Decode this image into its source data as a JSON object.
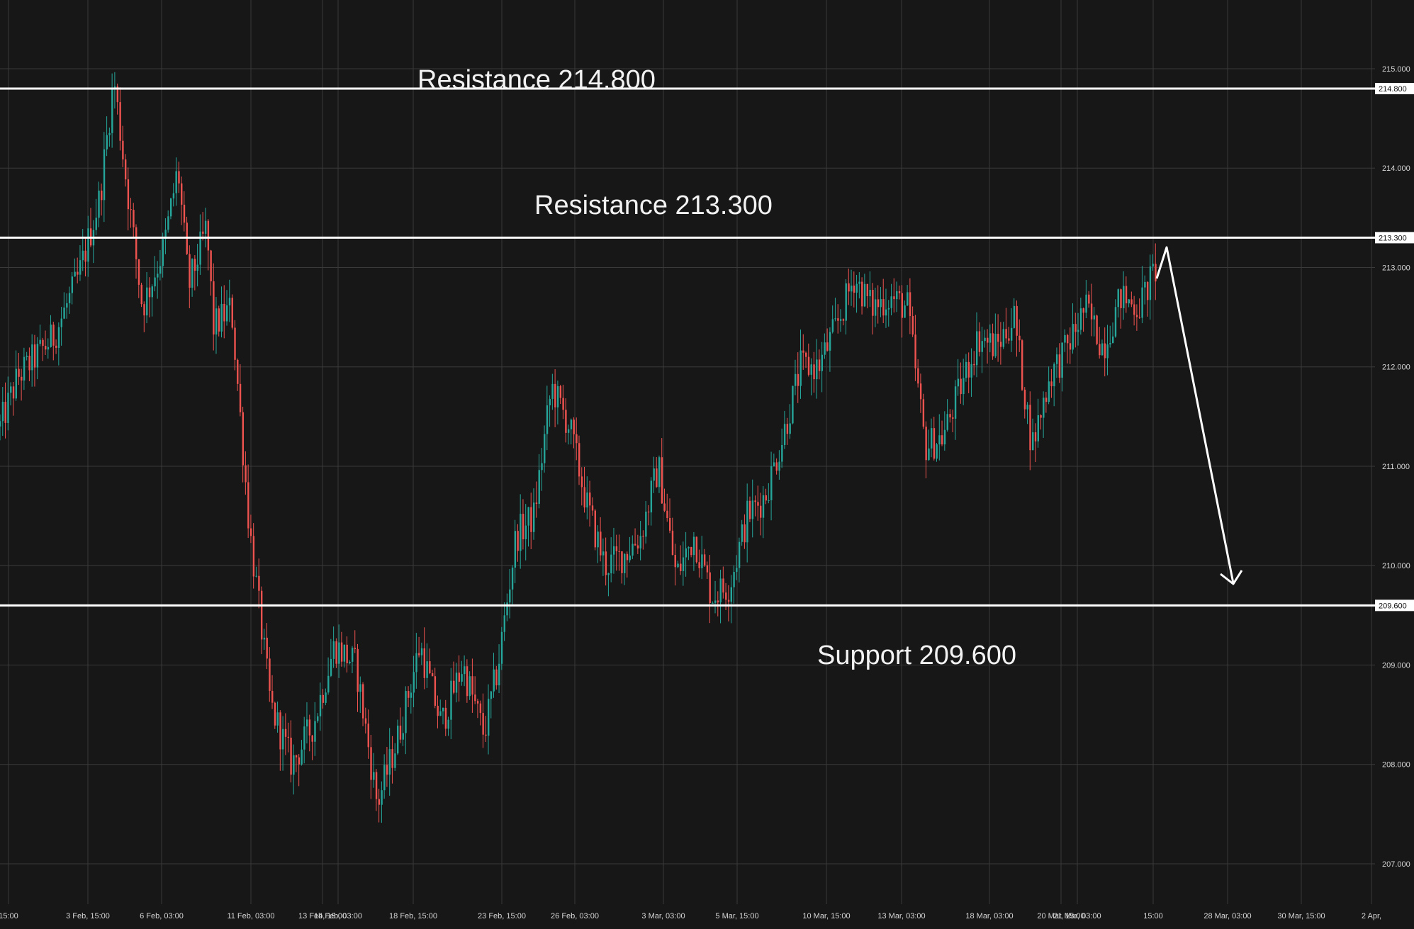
{
  "colors": {
    "background": "#171717",
    "grid": "#3a3a3a",
    "up": "#26a69a",
    "down": "#ef5350",
    "level_line": "#ffffff",
    "arrow": "#ffffff",
    "tick_text": "#d6d6d6"
  },
  "chart_data": {
    "type": "candlestick",
    "title": "",
    "grid": true,
    "ylim": [
      206.3,
      215.5
    ],
    "y_ticks": [
      "215.000",
      "214.000",
      "213.000",
      "212.000",
      "211.000",
      "210.000",
      "209.000",
      "208.000",
      "207.000"
    ],
    "x_ticks": [
      "15:00",
      "3 Feb, 15:00",
      "6 Feb, 03:00",
      "11 Feb, 03:00",
      "13 Feb, 15:00",
      "14 Feb, 03:00",
      "18 Feb, 15:00",
      "23 Feb, 15:00",
      "26 Feb, 03:00",
      "3 Mar, 03:00",
      "5 Mar, 15:00",
      "10 Mar, 15:00",
      "13 Mar, 03:00",
      "18 Mar, 03:00",
      "20 Mar, 15:00",
      "21 Mar, 03:00",
      "15:00",
      "28 Mar, 03:00",
      "30 Mar, 15:00",
      "2 Apr,"
    ],
    "levels": [
      {
        "value": 214.8,
        "tag": "214.800",
        "label": "Resistance 214.800"
      },
      {
        "value": 213.3,
        "tag": "213.300",
        "label": "Resistance 213.300"
      },
      {
        "value": 209.6,
        "tag": "209.600",
        "label": "Support 209.600"
      }
    ],
    "price_path": [
      {
        "x": 0.0,
        "y": 211.4
      },
      {
        "x": 0.5,
        "y": 211.9
      },
      {
        "x": 1.5,
        "y": 212.3
      },
      {
        "x": 2.2,
        "y": 212.9
      },
      {
        "x": 2.8,
        "y": 213.7
      },
      {
        "x": 3.2,
        "y": 214.9
      },
      {
        "x": 3.5,
        "y": 214.0
      },
      {
        "x": 4.0,
        "y": 212.6
      },
      {
        "x": 4.6,
        "y": 213.2
      },
      {
        "x": 5.0,
        "y": 214.0
      },
      {
        "x": 5.3,
        "y": 212.8
      },
      {
        "x": 5.8,
        "y": 213.4
      },
      {
        "x": 6.0,
        "y": 212.4
      },
      {
        "x": 6.5,
        "y": 212.6
      },
      {
        "x": 7.0,
        "y": 210.4
      },
      {
        "x": 7.6,
        "y": 208.6
      },
      {
        "x": 8.2,
        "y": 208.0
      },
      {
        "x": 8.8,
        "y": 208.4
      },
      {
        "x": 9.4,
        "y": 209.2
      },
      {
        "x": 10.0,
        "y": 209.0
      },
      {
        "x": 10.6,
        "y": 207.6
      },
      {
        "x": 11.2,
        "y": 208.3
      },
      {
        "x": 11.8,
        "y": 209.2
      },
      {
        "x": 12.4,
        "y": 208.4
      },
      {
        "x": 13.0,
        "y": 209.0
      },
      {
        "x": 13.6,
        "y": 208.3
      },
      {
        "x": 14.0,
        "y": 209.0
      },
      {
        "x": 14.5,
        "y": 210.3
      },
      {
        "x": 15.0,
        "y": 210.5
      },
      {
        "x": 15.5,
        "y": 211.8
      },
      {
        "x": 16.0,
        "y": 211.4
      },
      {
        "x": 16.5,
        "y": 210.6
      },
      {
        "x": 17.0,
        "y": 210.0
      },
      {
        "x": 17.5,
        "y": 210.1
      },
      {
        "x": 18.0,
        "y": 210.3
      },
      {
        "x": 18.5,
        "y": 211.0
      },
      {
        "x": 19.0,
        "y": 209.9
      },
      {
        "x": 19.5,
        "y": 210.3
      },
      {
        "x": 20.0,
        "y": 209.7
      },
      {
        "x": 20.5,
        "y": 209.8
      },
      {
        "x": 21.0,
        "y": 210.5
      },
      {
        "x": 21.5,
        "y": 210.7
      },
      {
        "x": 22.0,
        "y": 211.3
      },
      {
        "x": 22.5,
        "y": 212.0
      },
      {
        "x": 23.0,
        "y": 212.0
      },
      {
        "x": 23.5,
        "y": 212.4
      },
      {
        "x": 24.0,
        "y": 212.9
      },
      {
        "x": 24.5,
        "y": 212.6
      },
      {
        "x": 25.0,
        "y": 212.7
      },
      {
        "x": 25.5,
        "y": 212.6
      },
      {
        "x": 26.0,
        "y": 211.2
      },
      {
        "x": 26.5,
        "y": 211.3
      },
      {
        "x": 27.0,
        "y": 211.8
      },
      {
        "x": 27.5,
        "y": 212.3
      },
      {
        "x": 28.0,
        "y": 212.2
      },
      {
        "x": 28.5,
        "y": 212.5
      },
      {
        "x": 29.0,
        "y": 211.2
      },
      {
        "x": 29.5,
        "y": 211.9
      },
      {
        "x": 30.0,
        "y": 212.2
      },
      {
        "x": 30.5,
        "y": 212.6
      },
      {
        "x": 31.0,
        "y": 212.2
      },
      {
        "x": 31.5,
        "y": 212.7
      },
      {
        "x": 32.0,
        "y": 212.6
      },
      {
        "x": 32.5,
        "y": 213.0
      }
    ]
  },
  "annotations": {
    "resistance_high_label": "Resistance 214.800",
    "resistance_low_label": "Resistance 213.300",
    "support_label": "Support 209.600"
  },
  "projection_arrow": {
    "start": {
      "x": 32.5,
      "y": 213.3
    },
    "end": {
      "x": 34.4,
      "y": 209.7
    }
  }
}
